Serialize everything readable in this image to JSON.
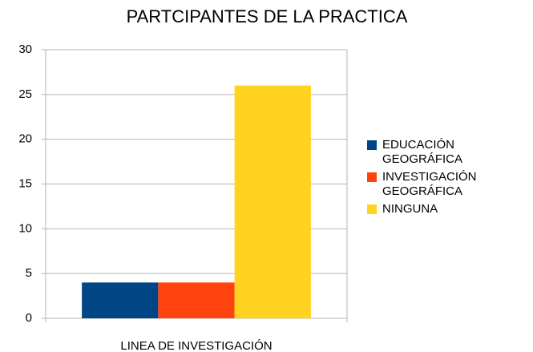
{
  "chart_data": {
    "type": "bar",
    "title": "PARTCIPANTES DE LA PRACTICA",
    "categories": [
      "LINEA DE INVESTIGACIÓN"
    ],
    "series": [
      {
        "name": "EDUCACIÓN GEOGRÁFICA",
        "color": "#004586",
        "values": [
          4
        ]
      },
      {
        "name": "INVESTIGACIÓN GEOGRÁFICA",
        "color": "#ff420e",
        "values": [
          4
        ]
      },
      {
        "name": "NINGUNA",
        "color": "#ffd320",
        "values": [
          26
        ]
      }
    ],
    "ylim": [
      0,
      30
    ],
    "yticks": [
      0,
      5,
      10,
      15,
      20,
      25,
      30
    ],
    "grid": true,
    "legend": "right"
  }
}
